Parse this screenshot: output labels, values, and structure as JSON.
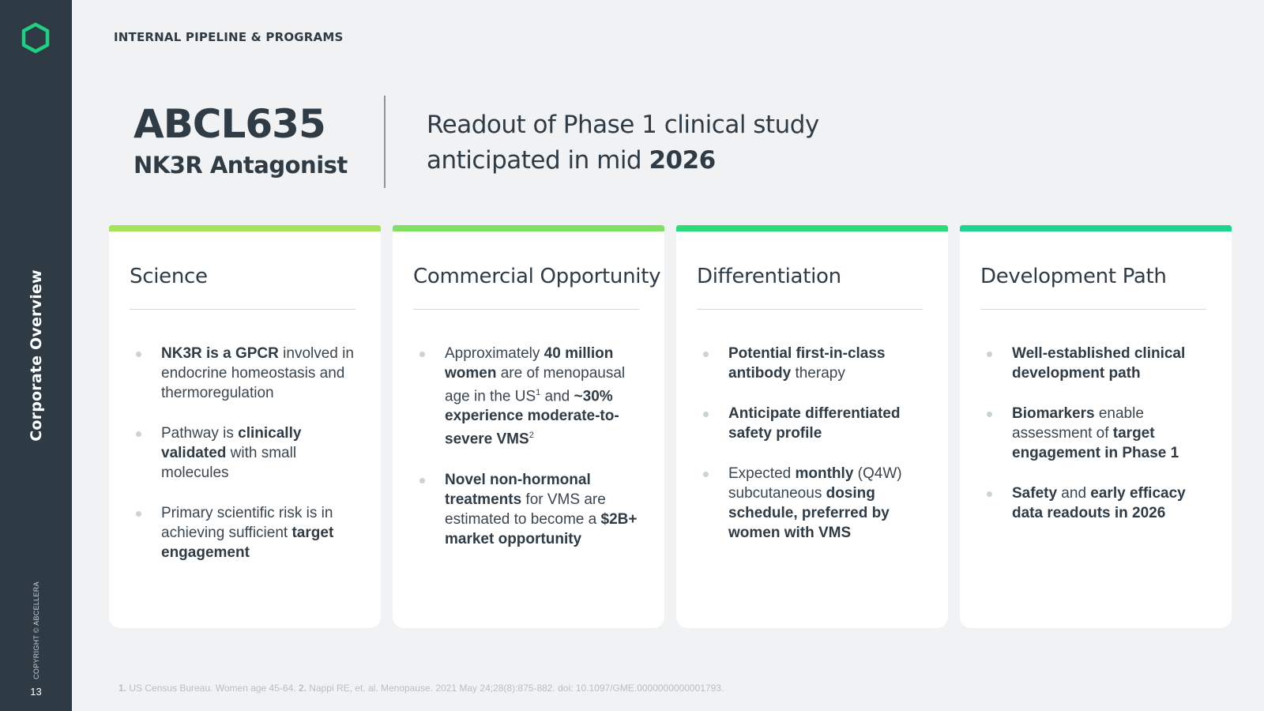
{
  "sidebar": {
    "section_label": "Corporate Overview",
    "copyright": "COPYRIGHT © ABCELLERA",
    "page_number": "13",
    "logo_icon": "hexagon-logo-icon",
    "accent_color": "#1ed07f"
  },
  "header": {
    "title": "INTERNAL PIPELINE & PROGRAMS"
  },
  "product": {
    "name": "ABCL635",
    "subtitle": "NK3R Antagonist"
  },
  "tagline": {
    "line1": "Readout of Phase 1 clinical study",
    "line2_prefix": "anticipated in mid ",
    "line2_bold": "2026"
  },
  "cards": [
    {
      "title": "Science",
      "bar_color": "#a4e35a",
      "bullets": [
        [
          {
            "t": "NK3R is a GPCR",
            "b": true
          },
          {
            "t": " involved in endocrine homeostasis and thermoregulation"
          }
        ],
        [
          {
            "t": "Pathway is "
          },
          {
            "t": "clinically validated",
            "b": true
          },
          {
            "t": " with small molecules"
          }
        ],
        [
          {
            "t": "Primary scientific risk is in achieving sufficient "
          },
          {
            "t": "target engagement",
            "b": true
          }
        ]
      ]
    },
    {
      "title": "Commercial Opportunity",
      "bar_color": "#7fe063",
      "bullets": [
        [
          {
            "t": "Approximately "
          },
          {
            "t": "40 million women",
            "b": true
          },
          {
            "t": " are of menopausal age in the US"
          },
          {
            "t": "1",
            "sup": true
          },
          {
            "t": " and "
          },
          {
            "t": "~30% experience moderate-to-severe VMS",
            "b": true
          },
          {
            "t": "2",
            "sup": true
          }
        ],
        [
          {
            "t": "Novel non-hormonal treatments",
            "b": true
          },
          {
            "t": " for VMS are estimated to become a "
          },
          {
            "t": "$2B+ market opportunity",
            "b": true
          }
        ]
      ]
    },
    {
      "title": "Differentiation",
      "bar_color": "#2cdb7a",
      "bullets": [
        [
          {
            "t": "Potential first-in-class antibody",
            "b": true
          },
          {
            "t": " therapy"
          }
        ],
        [
          {
            "t": "Anticipate differentiated safety profile",
            "b": true
          }
        ],
        [
          {
            "t": "Expected "
          },
          {
            "t": "monthly",
            "b": true
          },
          {
            "t": " (Q4W) subcutaneous "
          },
          {
            "t": "dosing schedule, preferred by women with VMS",
            "b": true
          }
        ]
      ]
    },
    {
      "title": "Development Path",
      "bar_color": "#1fd58e",
      "bullets": [
        [
          {
            "t": "Well-established clinical development path",
            "b": true
          }
        ],
        [
          {
            "t": "Biomarkers",
            "b": true
          },
          {
            "t": " enable assessment of "
          },
          {
            "t": "target engagement in Phase 1",
            "b": true
          }
        ],
        [
          {
            "t": "Safety",
            "b": true
          },
          {
            "t": " and "
          },
          {
            "t": "early efficacy data readouts in 2026",
            "b": true
          }
        ]
      ]
    }
  ],
  "footnote": {
    "n1": "1.",
    "ref1": " US Census Bureau. Women age 45-64. ",
    "n2": "2.",
    "ref2": " Nappi RE, et. al. Menopause. 2021 May 24;28(8):875-882. doi: 10.1097/GME.0000000000001793."
  }
}
